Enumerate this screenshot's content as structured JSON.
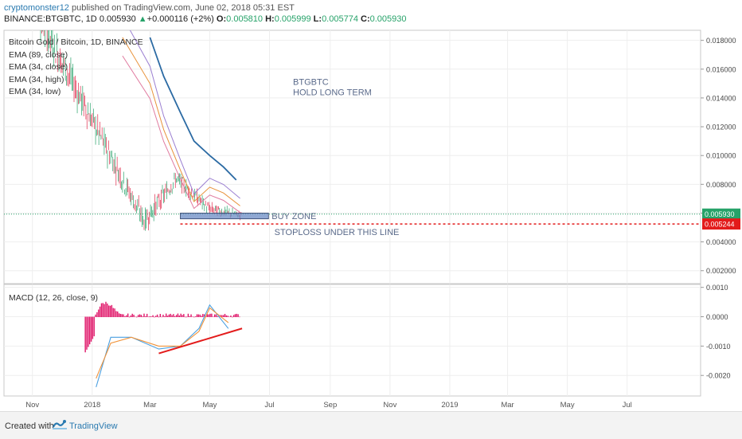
{
  "header": {
    "author": "cryptomonster12",
    "published": " published on TradingView.com, June 02, 2018 05:31 EST",
    "symbol": "BINANCE:BTGBTC, 1D",
    "last": "0.005930",
    "change": "+0.000116 (+2%)",
    "o_label": "O:",
    "o": "0.005810",
    "h_label": "H:",
    "h": "0.005999",
    "l_label": "L:",
    "l": "0.005774",
    "c_label": "C:",
    "c": "0.005930"
  },
  "legend": {
    "title": "Bitcoin Gold / Bitcoin, 1D, BINANCE",
    "ema1": "EMA (89, close)",
    "ema2": "EMA (34, close)",
    "ema3": "EMA (34, high)",
    "ema4": "EMA (34, low)",
    "macd": "MACD (12, 26, close, 9)"
  },
  "annotations": {
    "title1": "BTGBTC",
    "title2": "HOLD LONG TERM",
    "buy_zone": "BUY ZONE",
    "stoploss": "STOPLOSS UNDER THIS LINE"
  },
  "price_badges": {
    "current": "0.005930",
    "stop": "0.005244"
  },
  "colors": {
    "up": "#26a269",
    "down": "#e0294a",
    "ema89": "#2b6aa3",
    "ema_close": "#e8923a",
    "ema_high": "#9b7fd1",
    "ema_low": "#e07a9f",
    "buy_zone": "#6b8bc4",
    "stop_line": "#e31b1b",
    "macd_line": "#4a9fe0",
    "signal_line": "#f0933a",
    "hist": "#e0176a",
    "trend": "#e31b1b"
  },
  "footer": {
    "created": "Created with",
    "brand": "TradingView"
  },
  "chart_data": {
    "type": "line",
    "panes": [
      {
        "name": "price",
        "y_ticks": [
          "0.018000",
          "0.016000",
          "0.014000",
          "0.012000",
          "0.010000",
          "0.008000",
          "0.006000",
          "0.004000",
          "0.002000"
        ],
        "y_tick_values": [
          0.018,
          0.016,
          0.014,
          0.012,
          0.01,
          0.008,
          0.006,
          0.004,
          0.002
        ],
        "ylim": [
          0.0011,
          0.0187
        ],
        "grid": true,
        "series": [
          {
            "name": "EMA (89, close)",
            "x": [
              "2018-03-01",
              "2018-03-15",
              "2018-04-01",
              "2018-04-15",
              "2018-05-01",
              "2018-05-15",
              "2018-05-28"
            ],
            "values": [
              0.0182,
              0.0155,
              0.013,
              0.011,
              0.01,
              0.0092,
              0.0083
            ]
          },
          {
            "name": "EMA (34, close)",
            "x": [
              "2018-02-01",
              "2018-03-01",
              "2018-03-15",
              "2018-04-01",
              "2018-04-15",
              "2018-05-01",
              "2018-05-15",
              "2018-06-01"
            ],
            "values": [
              0.0182,
              0.015,
              0.0118,
              0.009,
              0.0068,
              0.0078,
              0.0074,
              0.0065
            ]
          }
        ],
        "horizontal_lines": [
          {
            "label": "current",
            "value": 0.00593
          },
          {
            "label": "stoploss",
            "value": 0.005244
          }
        ]
      },
      {
        "name": "MACD (12, 26, close, 9)",
        "y_ticks": [
          "0.0010",
          "0.0000",
          "-0.0010",
          "-0.0020"
        ],
        "y_tick_values": [
          0.001,
          0.0,
          -0.001,
          -0.002
        ],
        "ylim": [
          -0.0027,
          0.0011
        ],
        "series": [
          {
            "name": "MACD",
            "x": [
              "2018-01-05",
              "2018-01-20",
              "2018-02-10",
              "2018-03-10",
              "2018-04-01",
              "2018-04-20",
              "2018-05-01",
              "2018-05-20"
            ],
            "values": [
              -0.0024,
              -0.0007,
              -0.0007,
              -0.0011,
              -0.001,
              -0.0004,
              0.0004,
              -0.0004
            ]
          },
          {
            "name": "Signal",
            "x": [
              "2018-01-05",
              "2018-01-20",
              "2018-02-10",
              "2018-03-10",
              "2018-04-01",
              "2018-04-20",
              "2018-05-01",
              "2018-05-20"
            ],
            "values": [
              -0.0021,
              -0.0009,
              -0.0007,
              -0.001,
              -0.001,
              -0.0005,
              0.0003,
              -0.0002
            ]
          }
        ]
      }
    ],
    "x_ticks": [
      "Nov",
      "2018",
      "Mar",
      "May",
      "Jul",
      "Sep",
      "Nov",
      "2019",
      "Mar",
      "May",
      "Jul"
    ],
    "x_tick_values": [
      "2017-11-01",
      "2018-01-01",
      "2018-03-01",
      "2018-05-01",
      "2018-07-01",
      "2018-09-01",
      "2018-11-01",
      "2019-01-01",
      "2019-03-01",
      "2019-05-01",
      "2019-07-01"
    ],
    "xlim": [
      "2017-10-03",
      "2019-09-14"
    ]
  }
}
